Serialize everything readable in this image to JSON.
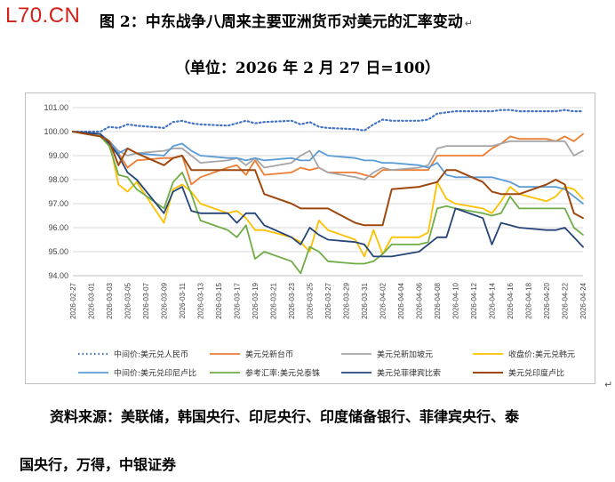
{
  "logo": "L70.CN",
  "title": "图 2：中东战争八周来主要亚洲货币对美元的汇率变动",
  "title_mark": "↵",
  "subtitle": "（单位：2026 年 2 月 27 日=100）",
  "source_line1": "资料来源：美联储，韩国央行、印尼央行、印度储备银行、菲律宾央行、泰",
  "source_line2": "国央行，万得，中银证券",
  "end_mark": "↵",
  "chart_data": {
    "type": "line",
    "ylim": [
      94.0,
      101.0
    ],
    "yticks": [
      "94.00",
      "95.00",
      "96.00",
      "97.00",
      "98.00",
      "99.00",
      "100.00",
      "101.00"
    ],
    "x": [
      "2026-02-27",
      "2026-03-02",
      "2026-03-03",
      "2026-03-04",
      "2026-03-05",
      "2026-03-06",
      "2026-03-09",
      "2026-03-10",
      "2026-03-11",
      "2026-03-12",
      "2026-03-13",
      "2026-03-16",
      "2026-03-17",
      "2026-03-18",
      "2026-03-19",
      "2026-03-20",
      "2026-03-23",
      "2026-03-24",
      "2026-03-25",
      "2026-03-26",
      "2026-03-27",
      "2026-03-30",
      "2026-03-31",
      "2026-04-01",
      "2026-04-02",
      "2026-04-03",
      "2026-04-06",
      "2026-04-07",
      "2026-04-08",
      "2026-04-09",
      "2026-04-10",
      "2026-04-13",
      "2026-04-14",
      "2026-04-15",
      "2026-04-16",
      "2026-04-17",
      "2026-04-20",
      "2026-04-21",
      "2026-04-22",
      "2026-04-23",
      "2026-04-24"
    ],
    "xticks": [
      "2026-02-27",
      "2026-03-01",
      "2026-03-03",
      "2026-03-05",
      "2026-03-07",
      "2026-03-09",
      "2026-03-11",
      "2026-03-13",
      "2026-03-15",
      "2026-03-17",
      "2026-03-19",
      "2026-03-21",
      "2026-03-23",
      "2026-03-25",
      "2026-03-27",
      "2026-03-29",
      "2026-03-31",
      "2026-04-02",
      "2026-04-04",
      "2026-04-06",
      "2026-04-08",
      "2026-04-10",
      "2026-04-12",
      "2026-04-14",
      "2026-04-16",
      "2026-04-18",
      "2026-04-20",
      "2026-04-22",
      "2026-04-24"
    ],
    "series": [
      {
        "name": "中间价:美元兑人民币",
        "color": "#4472c4",
        "dash": "dotted",
        "width": 2.2,
        "values": [
          100.0,
          100.0,
          100.2,
          100.15,
          100.3,
          100.25,
          100.15,
          100.4,
          100.45,
          100.35,
          100.3,
          100.25,
          100.35,
          100.45,
          100.35,
          100.4,
          100.45,
          100.3,
          100.4,
          100.2,
          100.15,
          100.1,
          100.05,
          100.3,
          100.5,
          100.45,
          100.45,
          100.5,
          100.75,
          100.8,
          100.85,
          100.85,
          100.85,
          100.9,
          100.9,
          100.85,
          100.85,
          100.85,
          100.9,
          100.85,
          100.85
        ]
      },
      {
        "name": "美元兑新台币",
        "color": "#ed7d31",
        "width": 1.8,
        "values": [
          100.0,
          99.8,
          99.5,
          99.1,
          98.5,
          98.8,
          98.9,
          98.9,
          99.0,
          97.8,
          98.1,
          98.5,
          98.6,
          98.2,
          98.8,
          98.2,
          98.3,
          98.5,
          98.4,
          98.5,
          98.3,
          98.3,
          98.2,
          98.1,
          98.4,
          98.4,
          98.4,
          98.4,
          99.0,
          99.0,
          99.0,
          99.0,
          99.3,
          99.5,
          99.8,
          99.7,
          99.7,
          99.6,
          99.8,
          99.6,
          99.9
        ]
      },
      {
        "name": "美元兑新加坡元",
        "color": "#a5a5a5",
        "width": 1.8,
        "values": [
          100.0,
          99.9,
          99.6,
          99.2,
          99.0,
          99.1,
          99.2,
          99.3,
          99.3,
          99.0,
          98.7,
          98.8,
          98.9,
          98.6,
          98.9,
          98.5,
          98.7,
          99.0,
          99.2,
          98.5,
          98.3,
          98.1,
          98.0,
          98.3,
          98.5,
          98.4,
          98.5,
          98.6,
          99.3,
          99.4,
          99.4,
          99.4,
          99.4,
          99.5,
          99.6,
          99.6,
          99.6,
          99.6,
          99.6,
          99.0,
          99.2
        ]
      },
      {
        "name": "收盘价:美元兑韩元",
        "color": "#ffc000",
        "width": 1.8,
        "values": [
          100.0,
          99.9,
          99.6,
          97.8,
          97.5,
          97.9,
          96.2,
          97.6,
          97.8,
          97.5,
          97.0,
          96.6,
          96.7,
          96.4,
          95.9,
          95.9,
          95.6,
          95.4,
          95.0,
          96.3,
          95.9,
          95.5,
          94.8,
          95.9,
          94.9,
          95.6,
          95.6,
          95.8,
          97.9,
          97.2,
          97.0,
          96.8,
          96.6,
          97.1,
          97.7,
          97.4,
          97.1,
          97.3,
          97.7,
          97.6,
          97.2
        ]
      },
      {
        "name": "中间价:美元兑印尼卢比",
        "color": "#5b9bd5",
        "width": 1.8,
        "values": [
          100.0,
          99.9,
          99.6,
          99.1,
          99.3,
          99.1,
          99.0,
          99.4,
          99.5,
          99.2,
          99.0,
          98.9,
          98.9,
          98.8,
          98.9,
          98.8,
          98.9,
          98.8,
          98.8,
          99.2,
          99.0,
          98.9,
          98.8,
          98.8,
          98.7,
          98.7,
          98.6,
          98.5,
          98.7,
          98.2,
          98.1,
          98.1,
          98.1,
          98.0,
          97.9,
          97.7,
          97.7,
          97.7,
          97.6,
          97.3,
          97.0
        ]
      },
      {
        "name": "参考汇率:美元兑泰铢",
        "color": "#70ad47",
        "width": 1.8,
        "values": [
          100.0,
          99.8,
          99.4,
          98.2,
          98.1,
          97.6,
          96.8,
          97.9,
          98.3,
          97.4,
          96.3,
          95.9,
          95.6,
          96.1,
          94.7,
          95.0,
          94.6,
          94.1,
          95.2,
          95.0,
          94.6,
          94.5,
          94.5,
          94.6,
          94.9,
          95.3,
          95.3,
          95.4,
          96.8,
          96.9,
          96.8,
          96.6,
          96.5,
          96.6,
          97.3,
          96.8,
          96.8,
          96.8,
          96.8,
          96.0,
          95.7
        ]
      },
      {
        "name": "美元兑菲律宾比索",
        "color": "#264478",
        "width": 1.8,
        "values": [
          100.0,
          99.9,
          99.5,
          99.0,
          98.3,
          98.0,
          96.6,
          97.5,
          97.7,
          96.7,
          96.6,
          96.6,
          96.2,
          96.6,
          96.6,
          96.1,
          95.6,
          95.3,
          96.0,
          95.7,
          95.5,
          95.4,
          95.3,
          94.8,
          94.8,
          94.8,
          95.0,
          95.3,
          95.6,
          95.6,
          96.8,
          96.4,
          95.3,
          96.2,
          96.1,
          96.0,
          95.9,
          95.9,
          96.0,
          95.6,
          95.2
        ]
      },
      {
        "name": "美元兑印度卢比",
        "color": "#9e480e",
        "width": 2.0,
        "values": [
          100.0,
          99.8,
          99.6,
          98.6,
          99.3,
          99.1,
          98.6,
          98.9,
          99.0,
          98.4,
          98.4,
          98.4,
          98.4,
          98.4,
          98.4,
          97.4,
          97.0,
          96.8,
          96.8,
          96.8,
          96.8,
          96.2,
          96.1,
          96.1,
          96.1,
          97.6,
          97.7,
          97.8,
          97.9,
          98.4,
          98.4,
          97.9,
          97.5,
          97.4,
          97.4,
          97.4,
          97.8,
          98.0,
          97.8,
          96.6,
          96.4
        ]
      }
    ],
    "legend_position": "bottom",
    "grid": "horizontal"
  }
}
